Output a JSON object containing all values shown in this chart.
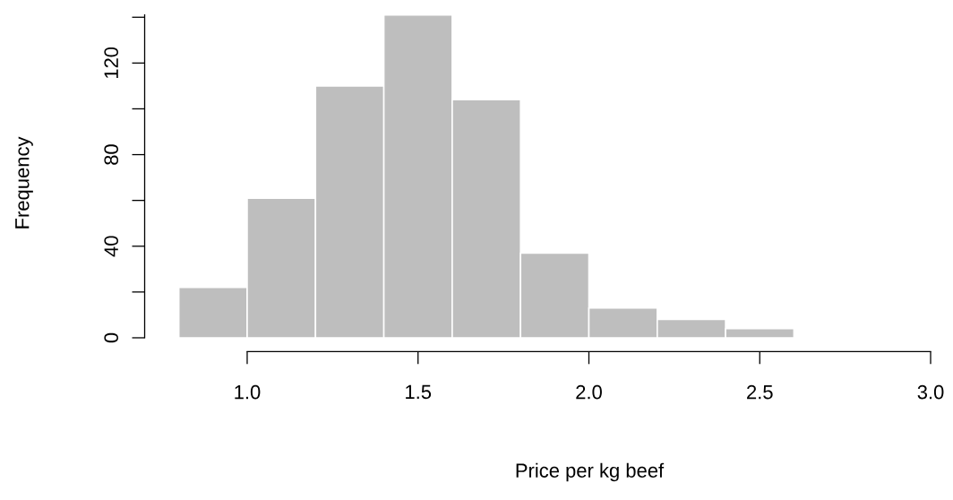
{
  "chart_data": {
    "type": "histogram",
    "xlabel": "Price per kg beef",
    "ylabel": "Frequency",
    "bins": [
      0.8,
      1.0,
      1.2,
      1.4,
      1.6,
      1.8,
      2.0,
      2.2,
      2.4,
      2.6
    ],
    "values": [
      22,
      61,
      110,
      141,
      104,
      37,
      13,
      8,
      4
    ],
    "color": "#bebebe",
    "xlim": [
      0.7,
      3.0
    ],
    "ylim": [
      -6,
      141
    ],
    "xticks": [
      {
        "value": 1.0,
        "label": "1.0"
      },
      1.5,
      {
        "value": 2.0,
        "label": "2.0"
      },
      2.5,
      {
        "value": 3.0,
        "label": "3.0"
      }
    ],
    "yticks": [
      0,
      {
        "value": 20,
        "label": null
      },
      40,
      {
        "value": 60,
        "label": null
      },
      80,
      {
        "value": 100,
        "label": null
      },
      120,
      {
        "value": 140,
        "label": null
      }
    ]
  }
}
